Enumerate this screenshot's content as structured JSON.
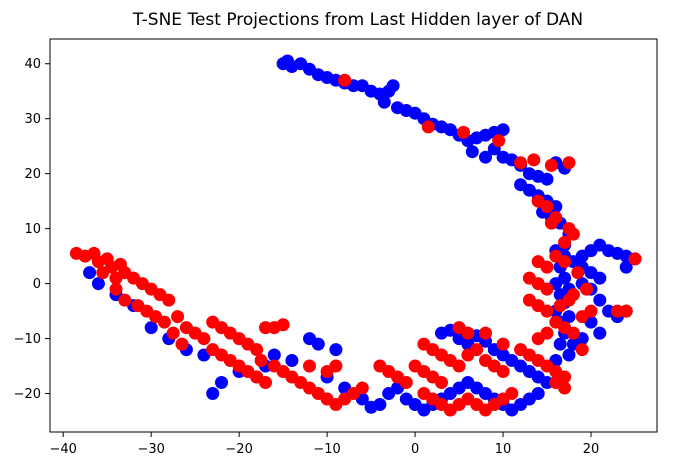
{
  "chart_data": {
    "type": "scatter",
    "title": "T-SNE Test Projections from Last Hidden layer of DAN",
    "xlabel": "",
    "ylabel": "",
    "xlim": [
      -41.5,
      27.5
    ],
    "ylim": [
      -27,
      44.5
    ],
    "xticks": [
      -40,
      -30,
      -20,
      -10,
      0,
      10,
      20
    ],
    "xtick_labels": [
      "−40",
      "−30",
      "−20",
      "−10",
      "0",
      "10",
      "20"
    ],
    "yticks": [
      -20,
      -10,
      0,
      10,
      20,
      30,
      40
    ],
    "ytick_labels": [
      "−20",
      "−10",
      "0",
      "10",
      "20",
      "30",
      "40"
    ],
    "grid": false,
    "legend": "none",
    "series": [
      {
        "color": "#0000ff",
        "points": [
          [
            -15,
            40
          ],
          [
            -14.5,
            40.5
          ],
          [
            -14,
            39.5
          ],
          [
            -13,
            40
          ],
          [
            -12,
            39
          ],
          [
            -11,
            38
          ],
          [
            -10,
            37.5
          ],
          [
            -9,
            37
          ],
          [
            -8,
            36.5
          ],
          [
            -7,
            36
          ],
          [
            -6,
            36
          ],
          [
            -5,
            35
          ],
          [
            -4,
            34.5
          ],
          [
            -3,
            35
          ],
          [
            -2.5,
            36
          ],
          [
            -3.5,
            33
          ],
          [
            -2,
            32
          ],
          [
            -1,
            31.5
          ],
          [
            0,
            31
          ],
          [
            1,
            30
          ],
          [
            2,
            29
          ],
          [
            3,
            28.5
          ],
          [
            4,
            28
          ],
          [
            5,
            27
          ],
          [
            6,
            26
          ],
          [
            7,
            26.5
          ],
          [
            8,
            27
          ],
          [
            9,
            27.5
          ],
          [
            10,
            28
          ],
          [
            6.5,
            24
          ],
          [
            8,
            23
          ],
          [
            9,
            24.5
          ],
          [
            10,
            23
          ],
          [
            11,
            22.5
          ],
          [
            12,
            21.5
          ],
          [
            13,
            20
          ],
          [
            14,
            19.5
          ],
          [
            15,
            19
          ],
          [
            12,
            18
          ],
          [
            13,
            17
          ],
          [
            14,
            16
          ],
          [
            15,
            15
          ],
          [
            16,
            14
          ],
          [
            14.5,
            13
          ],
          [
            15.5,
            12
          ],
          [
            16.5,
            11
          ],
          [
            17,
            21
          ],
          [
            16,
            22
          ],
          [
            17.5,
            9
          ],
          [
            17,
            7
          ],
          [
            16,
            6
          ],
          [
            17,
            5
          ],
          [
            16.5,
            3
          ],
          [
            17,
            1
          ],
          [
            16,
            0
          ],
          [
            17.5,
            -1
          ],
          [
            16.5,
            -2
          ],
          [
            17,
            -3.5
          ],
          [
            16,
            -5
          ],
          [
            17.5,
            -6
          ],
          [
            16.5,
            -7
          ],
          [
            17,
            -9
          ],
          [
            16.5,
            -11
          ],
          [
            17.5,
            -13
          ],
          [
            16,
            -14
          ],
          [
            18,
            4
          ],
          [
            19,
            5
          ],
          [
            20,
            6
          ],
          [
            21,
            7
          ],
          [
            22,
            6
          ],
          [
            23,
            5.5
          ],
          [
            24,
            5
          ],
          [
            25,
            4.5
          ],
          [
            24,
            3
          ],
          [
            19,
            3
          ],
          [
            20,
            2
          ],
          [
            21,
            1
          ],
          [
            19,
            0
          ],
          [
            20,
            -1
          ],
          [
            21,
            -3
          ],
          [
            22,
            -5
          ],
          [
            23,
            -6
          ],
          [
            24,
            -5
          ],
          [
            20,
            -7
          ],
          [
            21,
            -9
          ],
          [
            18,
            -11
          ],
          [
            19,
            -10
          ],
          [
            -12,
            -10
          ],
          [
            -11,
            -11
          ],
          [
            -9,
            -12
          ],
          [
            -14,
            -14
          ],
          [
            -16,
            -13
          ],
          [
            -17,
            -15
          ],
          [
            -18,
            -17
          ],
          [
            -20,
            -16
          ],
          [
            -22,
            -18
          ],
          [
            -23,
            -20
          ],
          [
            -10,
            -17
          ],
          [
            -8,
            -19
          ],
          [
            -6,
            -21
          ],
          [
            -5,
            -22.5
          ],
          [
            -4,
            -22
          ],
          [
            -3,
            -20
          ],
          [
            -2,
            -19
          ],
          [
            -1,
            -21
          ],
          [
            0,
            -22
          ],
          [
            1,
            -23
          ],
          [
            2,
            -22
          ],
          [
            3,
            -21
          ],
          [
            4,
            -20
          ],
          [
            5,
            -19
          ],
          [
            6,
            -18
          ],
          [
            7,
            -19
          ],
          [
            8,
            -20
          ],
          [
            9,
            -21
          ],
          [
            10,
            -22
          ],
          [
            11,
            -23
          ],
          [
            12,
            -22
          ],
          [
            13,
            -21
          ],
          [
            14,
            -20
          ],
          [
            15,
            -18
          ],
          [
            3,
            -9
          ],
          [
            4,
            -8.5
          ],
          [
            5,
            -10
          ],
          [
            6,
            -11
          ],
          [
            7,
            -9.5
          ],
          [
            8,
            -10.5
          ],
          [
            9,
            -12
          ],
          [
            10,
            -13
          ],
          [
            11,
            -14
          ],
          [
            12,
            -15
          ],
          [
            13,
            -16
          ],
          [
            14,
            -17
          ],
          [
            -30,
            -8
          ],
          [
            -28,
            -10
          ],
          [
            -26,
            -12
          ],
          [
            -24,
            -13
          ],
          [
            -32,
            -4
          ],
          [
            -34,
            -2
          ],
          [
            -36,
            0
          ],
          [
            -37,
            2
          ]
        ]
      },
      {
        "color": "#ff0000",
        "points": [
          [
            -38.5,
            5.5
          ],
          [
            -37.5,
            5
          ],
          [
            -36.5,
            5.5
          ],
          [
            -36,
            4
          ],
          [
            -35,
            4.5
          ],
          [
            -34.5,
            3
          ],
          [
            -33.5,
            3.5
          ],
          [
            -35.5,
            2
          ],
          [
            -34,
            1
          ],
          [
            -33,
            2
          ],
          [
            -32,
            1
          ],
          [
            -31,
            0
          ],
          [
            -30,
            -1
          ],
          [
            -29,
            -2
          ],
          [
            -28,
            -3
          ],
          [
            -34,
            -1
          ],
          [
            -33,
            -3
          ],
          [
            -31.5,
            -4
          ],
          [
            -30.5,
            -5
          ],
          [
            -29.5,
            -6
          ],
          [
            -28.5,
            -7
          ],
          [
            -27,
            -6
          ],
          [
            -26,
            -8
          ],
          [
            -25,
            -9
          ],
          [
            -24,
            -10
          ],
          [
            -27.5,
            -9
          ],
          [
            -26.5,
            -11
          ],
          [
            -23,
            -12
          ],
          [
            -22,
            -13
          ],
          [
            -21,
            -14
          ],
          [
            -20,
            -15
          ],
          [
            -19,
            -16
          ],
          [
            -18,
            -17
          ],
          [
            -17,
            -18
          ],
          [
            -23,
            -7
          ],
          [
            -22,
            -8
          ],
          [
            -21,
            -9
          ],
          [
            -20,
            -10
          ],
          [
            -19,
            -11
          ],
          [
            -17,
            -8
          ],
          [
            -16,
            -8
          ],
          [
            -15,
            -7.5
          ],
          [
            -18,
            -12
          ],
          [
            -17.5,
            -14
          ],
          [
            -16,
            -15
          ],
          [
            -15,
            -16
          ],
          [
            -14,
            -17
          ],
          [
            -13,
            -18
          ],
          [
            -12,
            -19
          ],
          [
            -11,
            -20
          ],
          [
            -10,
            -21
          ],
          [
            -9,
            -22
          ],
          [
            -8,
            -21
          ],
          [
            -7,
            -20
          ],
          [
            -6,
            -19
          ],
          [
            -10,
            -16
          ],
          [
            -9,
            -15
          ],
          [
            -12,
            -15
          ],
          [
            -4,
            -15
          ],
          [
            -3,
            -16
          ],
          [
            -2,
            -17
          ],
          [
            -1,
            -18
          ],
          [
            0,
            -15
          ],
          [
            1,
            -16
          ],
          [
            2,
            -17
          ],
          [
            3,
            -18
          ],
          [
            1,
            -20
          ],
          [
            2,
            -21
          ],
          [
            3,
            -22
          ],
          [
            4,
            -23
          ],
          [
            5,
            -22
          ],
          [
            6,
            -21
          ],
          [
            7,
            -22
          ],
          [
            8,
            -23
          ],
          [
            9,
            -22
          ],
          [
            10,
            -21
          ],
          [
            11,
            -20
          ],
          [
            1,
            -11
          ],
          [
            2,
            -12
          ],
          [
            3,
            -13
          ],
          [
            4,
            -14
          ],
          [
            5,
            -15
          ],
          [
            6,
            -13
          ],
          [
            7,
            -12
          ],
          [
            8,
            -14
          ],
          [
            9,
            -15
          ],
          [
            10,
            -16
          ],
          [
            12,
            -12
          ],
          [
            13,
            -13
          ],
          [
            14,
            -14
          ],
          [
            15,
            -15
          ],
          [
            16,
            -16
          ],
          [
            17,
            -17
          ],
          [
            5,
            -8
          ],
          [
            6,
            -9
          ],
          [
            8,
            -9
          ],
          [
            10,
            -11
          ],
          [
            -8,
            37
          ],
          [
            1.5,
            28.5
          ],
          [
            5.5,
            27.5
          ],
          [
            9.5,
            26
          ],
          [
            12,
            22
          ],
          [
            13.5,
            22.5
          ],
          [
            15.5,
            21.5
          ],
          [
            17.5,
            22
          ],
          [
            14,
            15
          ],
          [
            15,
            14
          ],
          [
            15.5,
            11
          ],
          [
            16,
            12
          ],
          [
            17.5,
            10
          ],
          [
            18,
            9
          ],
          [
            17,
            7.5
          ],
          [
            17,
            4
          ],
          [
            16,
            5
          ],
          [
            14,
            4
          ],
          [
            15,
            3
          ],
          [
            13,
            1
          ],
          [
            14,
            0
          ],
          [
            15,
            -1
          ],
          [
            13,
            -3
          ],
          [
            14,
            -4
          ],
          [
            15,
            -5
          ],
          [
            16.5,
            -4
          ],
          [
            17.5,
            -3
          ],
          [
            18,
            -2
          ],
          [
            16,
            -7
          ],
          [
            17,
            -8
          ],
          [
            18,
            -9
          ],
          [
            15,
            -9
          ],
          [
            14,
            -10
          ],
          [
            19,
            -6
          ],
          [
            20,
            -5
          ],
          [
            23,
            -5
          ],
          [
            24,
            -5
          ],
          [
            19,
            -12
          ],
          [
            16,
            -18
          ],
          [
            17,
            -19
          ],
          [
            25,
            4.5
          ],
          [
            18.5,
            2
          ],
          [
            19.5,
            -1
          ]
        ]
      }
    ]
  }
}
